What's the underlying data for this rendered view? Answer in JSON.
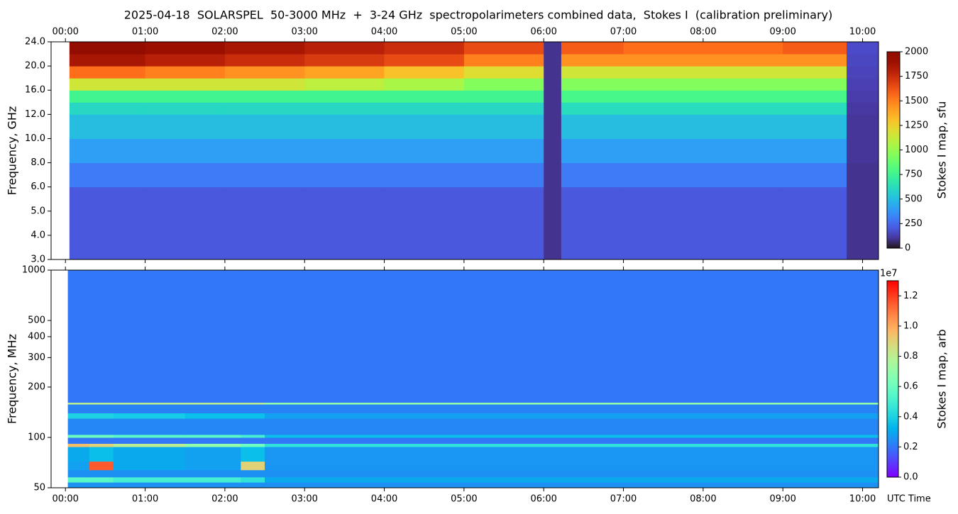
{
  "chart_data": [
    {
      "type": "heatmap",
      "title": "2025-04-18  SOLARSPEL  50-3000 MHz  +  3-24 GHz  spectropolarimeters combined data,  Stokes I  (calibration preliminary)",
      "ylabel": "Frequency, GHz",
      "clabel": "Stokes I map, sfu",
      "colormap": "turbo",
      "xtick_side": "top",
      "xlim": [
        -0.18,
        10.2
      ],
      "xticks": [
        {
          "value": 0,
          "label": "00:00"
        },
        {
          "value": 1,
          "label": "01:00"
        },
        {
          "value": 2,
          "label": "02:00"
        },
        {
          "value": 3,
          "label": "03:00"
        },
        {
          "value": 4,
          "label": "04:00"
        },
        {
          "value": 5,
          "label": "05:00"
        },
        {
          "value": 6,
          "label": "06:00"
        },
        {
          "value": 7,
          "label": "07:00"
        },
        {
          "value": 8,
          "label": "08:00"
        },
        {
          "value": 9,
          "label": "09:00"
        },
        {
          "value": 10,
          "label": "10:00"
        }
      ],
      "ylim": [
        3,
        24
      ],
      "yscale": "ticks",
      "yticks": [
        {
          "value": 3,
          "label": "3.0"
        },
        {
          "value": 4,
          "label": "4.0"
        },
        {
          "value": 5,
          "label": "5.0"
        },
        {
          "value": 6,
          "label": "6.0"
        },
        {
          "value": 8,
          "label": "8.0"
        },
        {
          "value": 10,
          "label": "10.0"
        },
        {
          "value": 12,
          "label": "12.0"
        },
        {
          "value": 16,
          "label": "16.0"
        },
        {
          "value": 20,
          "label": "20.0"
        },
        {
          "value": 24,
          "label": "24.0"
        }
      ],
      "clim": [
        0,
        2000
      ],
      "cticks": [
        0,
        250,
        500,
        750,
        1000,
        1250,
        1500,
        1750,
        2000
      ],
      "x_edges": [
        0.05,
        1,
        2,
        3,
        4,
        5,
        6,
        6.22,
        7,
        8,
        9,
        9.8,
        10.2
      ],
      "y_edges": [
        3,
        6,
        8,
        10,
        12,
        14,
        16,
        18,
        20,
        22,
        24
      ],
      "z": [
        [
          200,
          200,
          200,
          200,
          200,
          200,
          90,
          200,
          200,
          200,
          200,
          90
        ],
        [
          300,
          300,
          300,
          300,
          300,
          300,
          90,
          300,
          300,
          300,
          300,
          90
        ],
        [
          400,
          400,
          400,
          400,
          400,
          400,
          90,
          400,
          400,
          400,
          400,
          100
        ],
        [
          500,
          500,
          500,
          500,
          500,
          500,
          90,
          500,
          500,
          500,
          500,
          100
        ],
        [
          600,
          600,
          600,
          600,
          600,
          600,
          90,
          620,
          620,
          620,
          620,
          110
        ],
        [
          760,
          760,
          760,
          760,
          760,
          760,
          90,
          780,
          780,
          780,
          780,
          120
        ],
        [
          1150,
          1150,
          1150,
          1100,
          1050,
          950,
          90,
          950,
          950,
          950,
          950,
          130
        ],
        [
          1550,
          1500,
          1450,
          1400,
          1300,
          1200,
          90,
          1150,
          1150,
          1150,
          1150,
          140
        ],
        [
          1850,
          1800,
          1750,
          1700,
          1650,
          1500,
          90,
          1450,
          1450,
          1450,
          1450,
          150
        ],
        [
          1950,
          1900,
          1850,
          1800,
          1750,
          1650,
          90,
          1600,
          1550,
          1550,
          1600,
          160
        ]
      ]
    },
    {
      "type": "heatmap",
      "ylabel": "Frequency, MHz",
      "clabel": "Stokes I map, arb",
      "colormap": "rainbow",
      "xtick_side": "bottom",
      "xlabel": "UTC Time",
      "coffset": "1e7",
      "xlim": [
        -0.18,
        10.2
      ],
      "xticks": [
        {
          "value": 0,
          "label": "00:00"
        },
        {
          "value": 1,
          "label": "01:00"
        },
        {
          "value": 2,
          "label": "02:00"
        },
        {
          "value": 3,
          "label": "03:00"
        },
        {
          "value": 4,
          "label": "04:00"
        },
        {
          "value": 5,
          "label": "05:00"
        },
        {
          "value": 6,
          "label": "06:00"
        },
        {
          "value": 7,
          "label": "07:00"
        },
        {
          "value": 8,
          "label": "08:00"
        },
        {
          "value": 9,
          "label": "09:00"
        },
        {
          "value": 10,
          "label": "10:00"
        }
      ],
      "ylim": [
        50,
        1000
      ],
      "yscale": "log",
      "yticks": [
        50,
        100,
        200,
        300,
        400,
        500,
        1000
      ],
      "clim": [
        0,
        13000000
      ],
      "cticks": [
        {
          "value": 0,
          "label": "0.0"
        },
        {
          "value": 2000000,
          "label": "0.2"
        },
        {
          "value": 4000000,
          "label": "0.4"
        },
        {
          "value": 6000000,
          "label": "0.6"
        },
        {
          "value": 8000000,
          "label": "0.8"
        },
        {
          "value": 10000000,
          "label": "1.0"
        },
        {
          "value": 12000000,
          "label": "1.2"
        }
      ],
      "x_edges": [
        0.03,
        0.3,
        0.6,
        1.5,
        2.2,
        2.5,
        10.2
      ],
      "y_edges": [
        50,
        54,
        58,
        64,
        72,
        88,
        92,
        100,
        104,
        130,
        140,
        158,
        162,
        1000
      ],
      "z": [
        [
          2500000,
          2500000,
          2500000,
          2500000,
          2500000,
          2500000
        ],
        [
          5500000,
          5500000,
          5000000,
          5000000,
          4500000,
          3000000
        ],
        [
          2500000,
          2500000,
          2500000,
          2500000,
          2500000,
          2500000
        ],
        [
          2800000,
          11500000,
          3000000,
          2800000,
          9000000,
          2600000
        ],
        [
          3000000,
          3500000,
          3000000,
          2800000,
          3500000,
          2600000
        ],
        [
          9500000,
          9000000,
          8000000,
          7000000,
          6000000,
          4500000
        ],
        [
          2000000,
          2000000,
          2000000,
          2000000,
          2000000,
          2000000
        ],
        [
          6000000,
          6000000,
          5500000,
          5500000,
          5000000,
          3500000
        ],
        [
          2300000,
          2300000,
          2300000,
          2300000,
          2300000,
          2300000
        ],
        [
          4000000,
          4000000,
          3800000,
          3500000,
          3500000,
          2800000
        ],
        [
          2200000,
          2200000,
          2200000,
          2200000,
          2200000,
          2200000
        ],
        [
          8000000,
          8000000,
          8000000,
          8000000,
          8000000,
          7000000
        ],
        [
          2000000,
          2000000,
          2000000,
          2000000,
          2000000,
          2000000
        ]
      ]
    }
  ]
}
